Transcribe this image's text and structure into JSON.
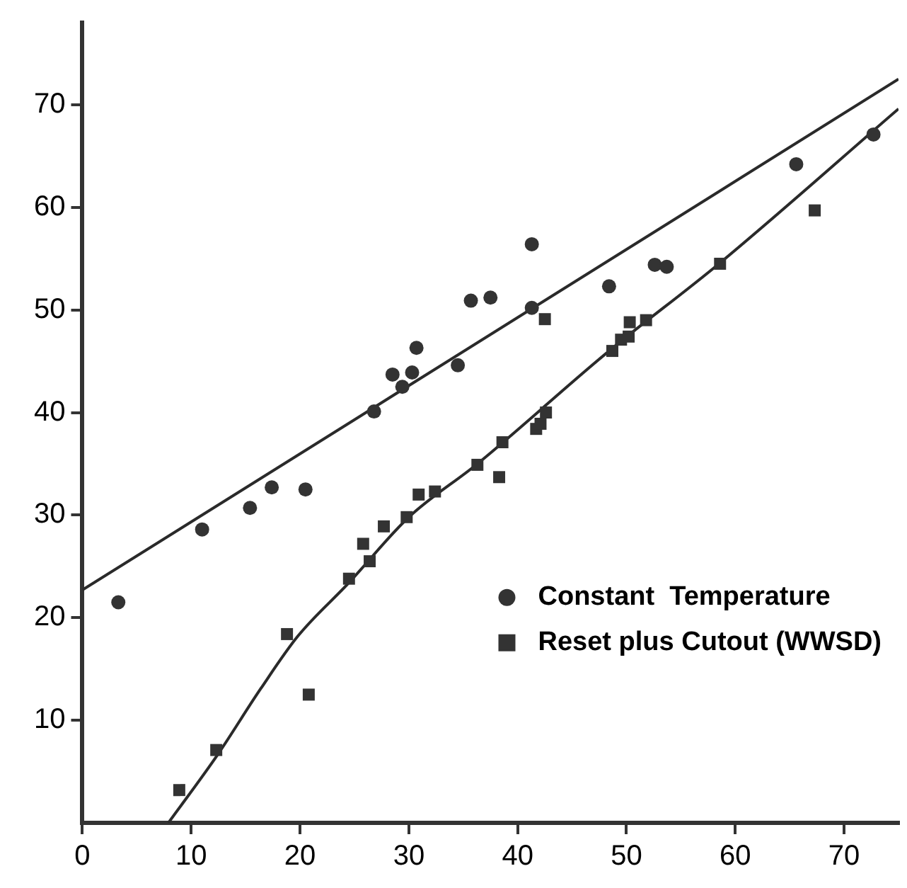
{
  "chart_data": {
    "type": "scatter",
    "xlim": [
      0,
      75
    ],
    "xticks": [
      0,
      10,
      20,
      30,
      40,
      50,
      60,
      70
    ],
    "ylim": [
      0,
      78
    ],
    "yticks": [
      10,
      20,
      30,
      40,
      50,
      60,
      70
    ],
    "legend": "right",
    "series": [
      {
        "name": "Constant  Temperature",
        "color": "#333333",
        "marker": "circle",
        "x": [
          3.3,
          11.0,
          15.4,
          17.4,
          20.5,
          26.8,
          28.5,
          29.4,
          30.3,
          30.7,
          34.5,
          35.7,
          37.5,
          41.3,
          41.3,
          48.4,
          52.6,
          53.7,
          65.6,
          72.7
        ],
        "values": [
          21.5,
          28.6,
          30.7,
          32.7,
          32.5,
          40.1,
          43.7,
          42.5,
          43.9,
          46.3,
          44.6,
          50.9,
          51.2,
          56.4,
          50.2,
          52.3,
          54.4,
          54.2,
          64.2,
          67.1
        ]
      },
      {
        "name": "Reset plus Cutout (WWSD)",
        "color": "#333333",
        "marker": "square",
        "x": [
          8.9,
          12.3,
          18.8,
          20.8,
          24.5,
          25.8,
          26.4,
          27.7,
          29.8,
          30.9,
          32.4,
          36.3,
          38.3,
          38.5,
          38.6,
          41.7,
          42.1,
          42.6,
          42.5,
          48.7,
          49.5,
          50.2,
          50.3,
          51.8,
          58.6,
          67.3
        ],
        "values": [
          3.2,
          7.1,
          18.4,
          12.5,
          23.8,
          27.2,
          25.5,
          28.9,
          29.8,
          32.0,
          32.3,
          34.9,
          33.7,
          null,
          37.1,
          38.4,
          38.9,
          40.0,
          49.1,
          46.0,
          47.1,
          47.4,
          48.8,
          49.0,
          54.5,
          59.7
        ]
      },
      {
        "type": "line",
        "color": "#2a2a2a",
        "marker": "none",
        "x": [
          0,
          75
        ],
        "values": [
          22.7,
          72.5
        ]
      },
      {
        "type": "line",
        "color": "#2a2a2a",
        "marker": "none",
        "x": [
          7.9,
          12.4,
          16.4,
          19.8,
          24.4,
          30,
          36.3,
          48.4,
          58.5,
          75
        ],
        "values": [
          0,
          6.6,
          13.1,
          18.2,
          23.3,
          29.8,
          35,
          46,
          54.5,
          69.6
        ]
      }
    ]
  }
}
